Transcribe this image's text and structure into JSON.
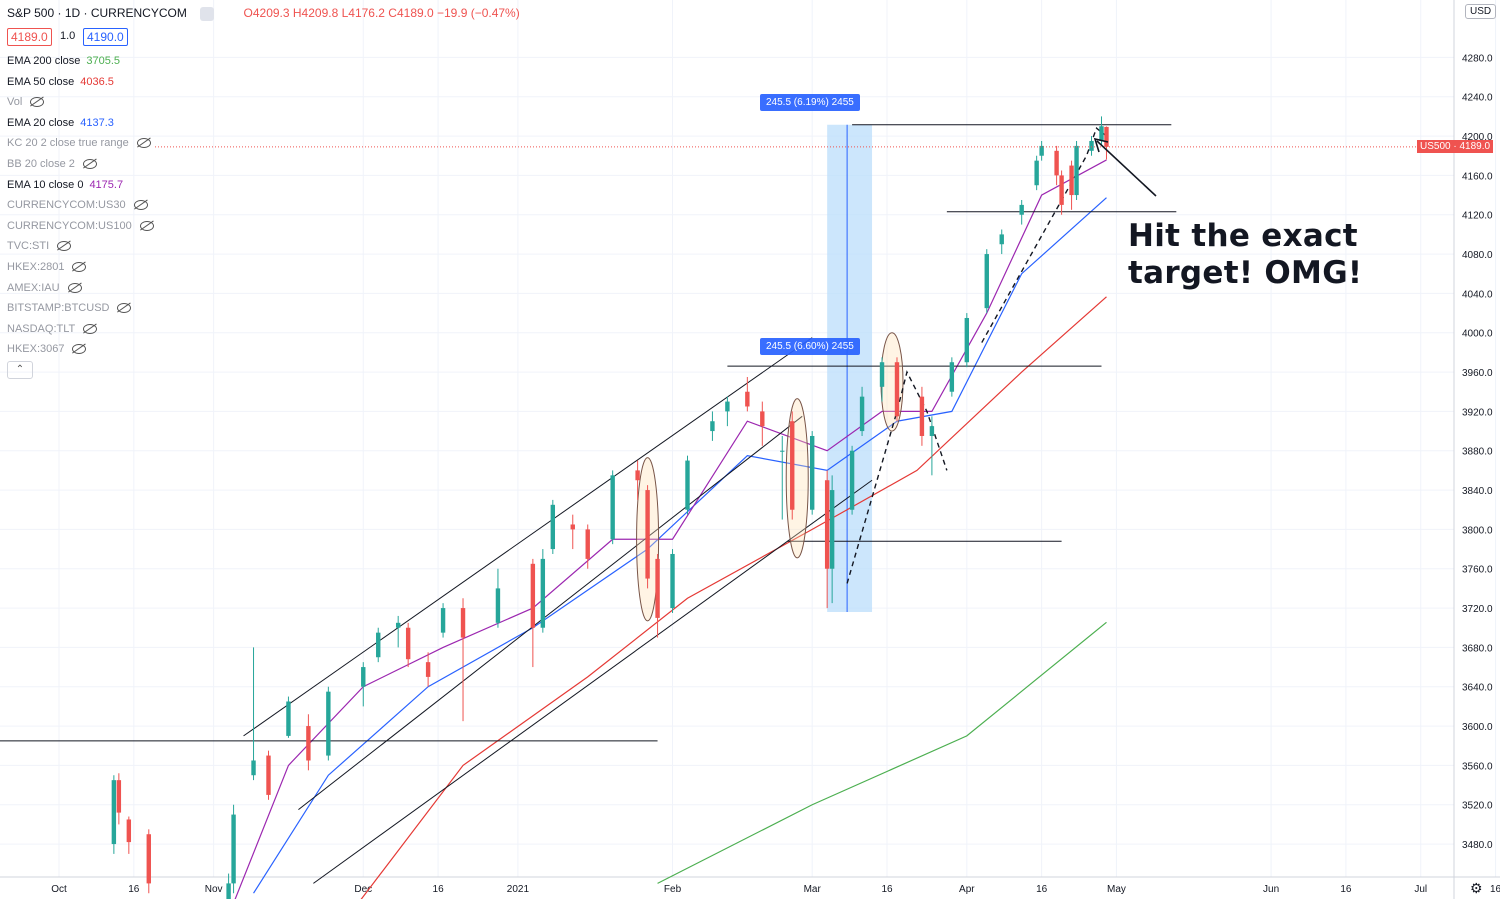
{
  "header": {
    "symbol": "S&P 500 · 1D · CURRENCYCOM",
    "ohlc_text": "O4209.3 H4209.8 L4176.2 C4189.0 −19.9 (−0.47%)"
  },
  "quote": {
    "bid": "4189.0",
    "spread": "1.0",
    "ask": "4190.0"
  },
  "legend": [
    {
      "label": "EMA 200 close",
      "value": "3705.5",
      "color": "#4caf50",
      "hidden": false
    },
    {
      "label": "EMA 50 close",
      "value": "4036.5",
      "color": "#e53935",
      "hidden": false
    },
    {
      "label": "Vol",
      "value": "",
      "color": "",
      "hidden": true
    },
    {
      "label": "EMA 20 close",
      "value": "4137.3",
      "color": "#2962ff",
      "hidden": false
    },
    {
      "label": "KC 20 2 close true range",
      "value": "",
      "color": "",
      "hidden": true
    },
    {
      "label": "BB 20 close 2",
      "value": "",
      "color": "",
      "hidden": true
    },
    {
      "label": "EMA 10 close 0",
      "value": "4175.7",
      "color": "#9c27b0",
      "hidden": false
    },
    {
      "label": "CURRENCYCOM:US30",
      "value": "",
      "color": "",
      "hidden": true
    },
    {
      "label": "CURRENCYCOM:US100",
      "value": "",
      "color": "",
      "hidden": true
    },
    {
      "label": "TVC:STI",
      "value": "",
      "color": "",
      "hidden": true
    },
    {
      "label": "HKEX:2801",
      "value": "",
      "color": "",
      "hidden": true
    },
    {
      "label": "AMEX:IAU",
      "value": "",
      "color": "",
      "hidden": true
    },
    {
      "label": "BITSTAMP:BTCUSD",
      "value": "",
      "color": "",
      "hidden": true
    },
    {
      "label": "NASDAQ:TLT",
      "value": "",
      "color": "",
      "hidden": true
    },
    {
      "label": "HKEX:3067",
      "value": "",
      "color": "",
      "hidden": true
    }
  ],
  "currency_label": "USD",
  "price_tag": "US500 · 4189.0",
  "annotation": [
    "Hit the exact",
    "target! OMG!"
  ],
  "measure_labels": [
    "245.5 (6.19%) 2455",
    "245.5 (6.60%) 2455"
  ],
  "colors": {
    "up": "#26a69a",
    "down": "#ef5350",
    "ema10": "#9c27b0",
    "ema20": "#2962ff",
    "ema50": "#e53935",
    "ema200": "#4caf50",
    "measure": "#bbdefb"
  },
  "chart_data": {
    "type": "candlestick",
    "instrument": "US500",
    "timeframe": "1D",
    "y_ticks": [
      3480,
      3520,
      3560,
      3600,
      3640,
      3680,
      3720,
      3760,
      3800,
      3840,
      3880,
      3920,
      3960,
      4000,
      4040,
      4080,
      4120,
      4160,
      4200,
      4240,
      4280
    ],
    "x_ticks": [
      "Oct",
      "16",
      "Nov",
      "Dec",
      "16",
      "2021",
      "Feb",
      "Mar",
      "16",
      "Apr",
      "16",
      "May",
      "Jun",
      "16",
      "Jul",
      "16"
    ],
    "candles": [
      {
        "date": "2020-10-12",
        "o": 3480,
        "h": 3550,
        "l": 3470,
        "c": 3545
      },
      {
        "date": "2020-10-13",
        "o": 3545,
        "h": 3552,
        "l": 3500,
        "c": 3512
      },
      {
        "date": "2020-10-15",
        "o": 3505,
        "h": 3508,
        "l": 3470,
        "c": 3482
      },
      {
        "date": "2020-10-19",
        "o": 3490,
        "h": 3495,
        "l": 3430,
        "c": 3440
      },
      {
        "date": "2020-11-04",
        "o": 3400,
        "h": 3450,
        "l": 3380,
        "c": 3440
      },
      {
        "date": "2020-11-05",
        "o": 3440,
        "h": 3520,
        "l": 3430,
        "c": 3510
      },
      {
        "date": "2020-11-09",
        "o": 3550,
        "h": 3680,
        "l": 3545,
        "c": 3565
      },
      {
        "date": "2020-11-12",
        "o": 3570,
        "h": 3575,
        "l": 3525,
        "c": 3530
      },
      {
        "date": "2020-11-16",
        "o": 3590,
        "h": 3630,
        "l": 3588,
        "c": 3625
      },
      {
        "date": "2020-11-20",
        "o": 3600,
        "h": 3612,
        "l": 3555,
        "c": 3565
      },
      {
        "date": "2020-11-24",
        "o": 3570,
        "h": 3640,
        "l": 3565,
        "c": 3635
      },
      {
        "date": "2020-12-01",
        "o": 3640,
        "h": 3665,
        "l": 3620,
        "c": 3660
      },
      {
        "date": "2020-12-04",
        "o": 3670,
        "h": 3700,
        "l": 3665,
        "c": 3695
      },
      {
        "date": "2020-12-08",
        "o": 3700,
        "h": 3712,
        "l": 3680,
        "c": 3705
      },
      {
        "date": "2020-12-10",
        "o": 3700,
        "h": 3705,
        "l": 3660,
        "c": 3668
      },
      {
        "date": "2020-12-14",
        "o": 3665,
        "h": 3675,
        "l": 3640,
        "c": 3650
      },
      {
        "date": "2020-12-17",
        "o": 3695,
        "h": 3725,
        "l": 3690,
        "c": 3720
      },
      {
        "date": "2020-12-21",
        "o": 3720,
        "h": 3730,
        "l": 3605,
        "c": 3690
      },
      {
        "date": "2020-12-28",
        "o": 3705,
        "h": 3760,
        "l": 3700,
        "c": 3740
      },
      {
        "date": "2021-01-04",
        "o": 3765,
        "h": 3770,
        "l": 3660,
        "c": 3700
      },
      {
        "date": "2021-01-06",
        "o": 3700,
        "h": 3780,
        "l": 3695,
        "c": 3770
      },
      {
        "date": "2021-01-08",
        "o": 3780,
        "h": 3830,
        "l": 3775,
        "c": 3825
      },
      {
        "date": "2021-01-12",
        "o": 3805,
        "h": 3815,
        "l": 3780,
        "c": 3800
      },
      {
        "date": "2021-01-15",
        "o": 3800,
        "h": 3805,
        "l": 3760,
        "c": 3770
      },
      {
        "date": "2021-01-20",
        "o": 3790,
        "h": 3860,
        "l": 3785,
        "c": 3855
      },
      {
        "date": "2021-01-25",
        "o": 3860,
        "h": 3870,
        "l": 3830,
        "c": 3850
      },
      {
        "date": "2021-01-27",
        "o": 3840,
        "h": 3845,
        "l": 3740,
        "c": 3750
      },
      {
        "date": "2021-01-29",
        "o": 3770,
        "h": 3775,
        "l": 3690,
        "c": 3710
      },
      {
        "date": "2021-02-01",
        "o": 3720,
        "h": 3780,
        "l": 3715,
        "c": 3775
      },
      {
        "date": "2021-02-04",
        "o": 3820,
        "h": 3875,
        "l": 3815,
        "c": 3870
      },
      {
        "date": "2021-02-09",
        "o": 3900,
        "h": 3920,
        "l": 3890,
        "c": 3910
      },
      {
        "date": "2021-02-12",
        "o": 3920,
        "h": 3935,
        "l": 3905,
        "c": 3930
      },
      {
        "date": "2021-02-16",
        "o": 3940,
        "h": 3955,
        "l": 3920,
        "c": 3925
      },
      {
        "date": "2021-02-19",
        "o": 3920,
        "h": 3930,
        "l": 3885,
        "c": 3905
      },
      {
        "date": "2021-02-23",
        "o": 3880,
        "h": 3895,
        "l": 3810,
        "c": 3880
      },
      {
        "date": "2021-02-25",
        "o": 3910,
        "h": 3920,
        "l": 3810,
        "c": 3820
      },
      {
        "date": "2021-03-01",
        "o": 3820,
        "h": 3900,
        "l": 3815,
        "c": 3895
      },
      {
        "date": "2021-03-04",
        "o": 3850,
        "h": 3860,
        "l": 3720,
        "c": 3760
      },
      {
        "date": "2021-03-05",
        "o": 3760,
        "h": 3855,
        "l": 3725,
        "c": 3840
      },
      {
        "date": "2021-03-09",
        "o": 3820,
        "h": 3885,
        "l": 3815,
        "c": 3880
      },
      {
        "date": "2021-03-11",
        "o": 3900,
        "h": 3945,
        "l": 3895,
        "c": 3935
      },
      {
        "date": "2021-03-15",
        "o": 3945,
        "h": 3975,
        "l": 3930,
        "c": 3970
      },
      {
        "date": "2021-03-18",
        "o": 3970,
        "h": 3975,
        "l": 3910,
        "c": 3915
      },
      {
        "date": "2021-03-23",
        "o": 3935,
        "h": 3945,
        "l": 3885,
        "c": 3895
      },
      {
        "date": "2021-03-25",
        "o": 3895,
        "h": 3915,
        "l": 3855,
        "c": 3905
      },
      {
        "date": "2021-03-29",
        "o": 3940,
        "h": 3975,
        "l": 3935,
        "c": 3970
      },
      {
        "date": "2021-04-01",
        "o": 3970,
        "h": 4020,
        "l": 3965,
        "c": 4015
      },
      {
        "date": "2021-04-05",
        "o": 4025,
        "h": 4085,
        "l": 4020,
        "c": 4080
      },
      {
        "date": "2021-04-08",
        "o": 4090,
        "h": 4105,
        "l": 4080,
        "c": 4100
      },
      {
        "date": "2021-04-12",
        "o": 4120,
        "h": 4135,
        "l": 4110,
        "c": 4130
      },
      {
        "date": "2021-04-15",
        "o": 4150,
        "h": 4180,
        "l": 4145,
        "c": 4175
      },
      {
        "date": "2021-04-16",
        "o": 4180,
        "h": 4195,
        "l": 4175,
        "c": 4190
      },
      {
        "date": "2021-04-19",
        "o": 4185,
        "h": 4190,
        "l": 4150,
        "c": 4160
      },
      {
        "date": "2021-04-20",
        "o": 4160,
        "h": 4165,
        "l": 4120,
        "c": 4130
      },
      {
        "date": "2021-04-22",
        "o": 4170,
        "h": 4175,
        "l": 4125,
        "c": 4140
      },
      {
        "date": "2021-04-23",
        "o": 4140,
        "h": 4195,
        "l": 4135,
        "c": 4190
      },
      {
        "date": "2021-04-26",
        "o": 4185,
        "h": 4200,
        "l": 4180,
        "c": 4195
      },
      {
        "date": "2021-04-28",
        "o": 4195,
        "h": 4220,
        "l": 4190,
        "c": 4210
      },
      {
        "date": "2021-04-29",
        "o": 4209.3,
        "h": 4209.8,
        "l": 4176.2,
        "c": 4189.0
      }
    ],
    "ema10": [
      [
        "2020-11-05",
        3420
      ],
      [
        "2020-11-16",
        3560
      ],
      [
        "2020-12-01",
        3640
      ],
      [
        "2020-12-17",
        3680
      ],
      [
        "2021-01-04",
        3720
      ],
      [
        "2021-01-20",
        3790
      ],
      [
        "2021-02-01",
        3790
      ],
      [
        "2021-02-16",
        3910
      ],
      [
        "2021-03-04",
        3880
      ],
      [
        "2021-03-15",
        3920
      ],
      [
        "2021-03-25",
        3920
      ],
      [
        "2021-04-05",
        4020
      ],
      [
        "2021-04-16",
        4140
      ],
      [
        "2021-04-29",
        4175.7
      ]
    ],
    "ema20": [
      [
        "2020-11-09",
        3430
      ],
      [
        "2020-11-24",
        3550
      ],
      [
        "2020-12-14",
        3640
      ],
      [
        "2021-01-04",
        3700
      ],
      [
        "2021-01-27",
        3780
      ],
      [
        "2021-02-16",
        3875
      ],
      [
        "2021-03-04",
        3860
      ],
      [
        "2021-03-18",
        3910
      ],
      [
        "2021-03-29",
        3920
      ],
      [
        "2021-04-12",
        4060
      ],
      [
        "2021-04-29",
        4137.3
      ]
    ],
    "ema50": [
      [
        "2020-11-30",
        3420
      ],
      [
        "2020-12-21",
        3560
      ],
      [
        "2021-01-15",
        3650
      ],
      [
        "2021-02-04",
        3730
      ],
      [
        "2021-03-01",
        3800
      ],
      [
        "2021-03-22",
        3860
      ],
      [
        "2021-04-12",
        3960
      ],
      [
        "2021-04-29",
        4036.5
      ]
    ],
    "ema200": [
      [
        "2021-01-29",
        3440
      ],
      [
        "2021-03-01",
        3520
      ],
      [
        "2021-04-01",
        3590
      ],
      [
        "2021-04-29",
        3705.5
      ]
    ]
  }
}
